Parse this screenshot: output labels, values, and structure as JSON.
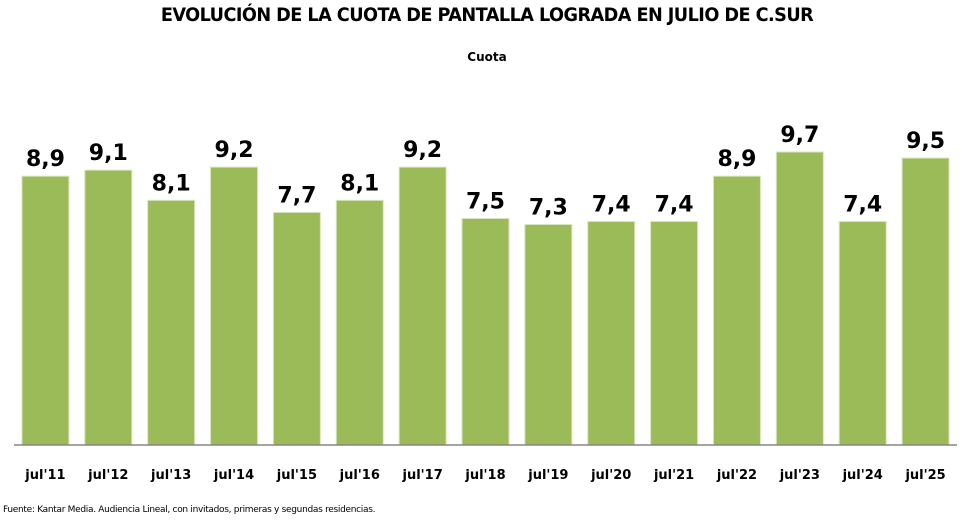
{
  "chart_data": {
    "type": "bar",
    "title": "EVOLUCIÓN DE LA CUOTA DE PANTALLA LOGRADA EN JULIO DE C.SUR",
    "subtitle": "Cuota",
    "xlabel": "",
    "ylabel": "",
    "categories": [
      "jul'11",
      "jul'12",
      "jul'13",
      "jul'14",
      "jul'15",
      "jul'16",
      "jul'17",
      "jul'18",
      "jul'19",
      "jul'20",
      "jul'21",
      "jul'22",
      "jul'23",
      "jul'24",
      "jul'25"
    ],
    "series": [
      {
        "name": "Cuota",
        "values": [
          8.9,
          9.1,
          8.1,
          9.2,
          7.7,
          8.1,
          9.2,
          7.5,
          7.3,
          7.4,
          7.4,
          8.9,
          9.7,
          7.4,
          9.5
        ],
        "labels": [
          "8,9",
          "9,1",
          "8,1",
          "9,2",
          "7,7",
          "8,1",
          "9,2",
          "7,5",
          "7,3",
          "7,4",
          "7,4",
          "8,9",
          "9,7",
          "7,4",
          "9,5"
        ],
        "color": "#9bbb59"
      }
    ],
    "ylim": [
      0,
      9.7
    ],
    "grid": false,
    "legend": "none",
    "source": "Fuente: Kantar Media. Audiencia Lineal, con invitados, primeras y segundas residencias."
  }
}
